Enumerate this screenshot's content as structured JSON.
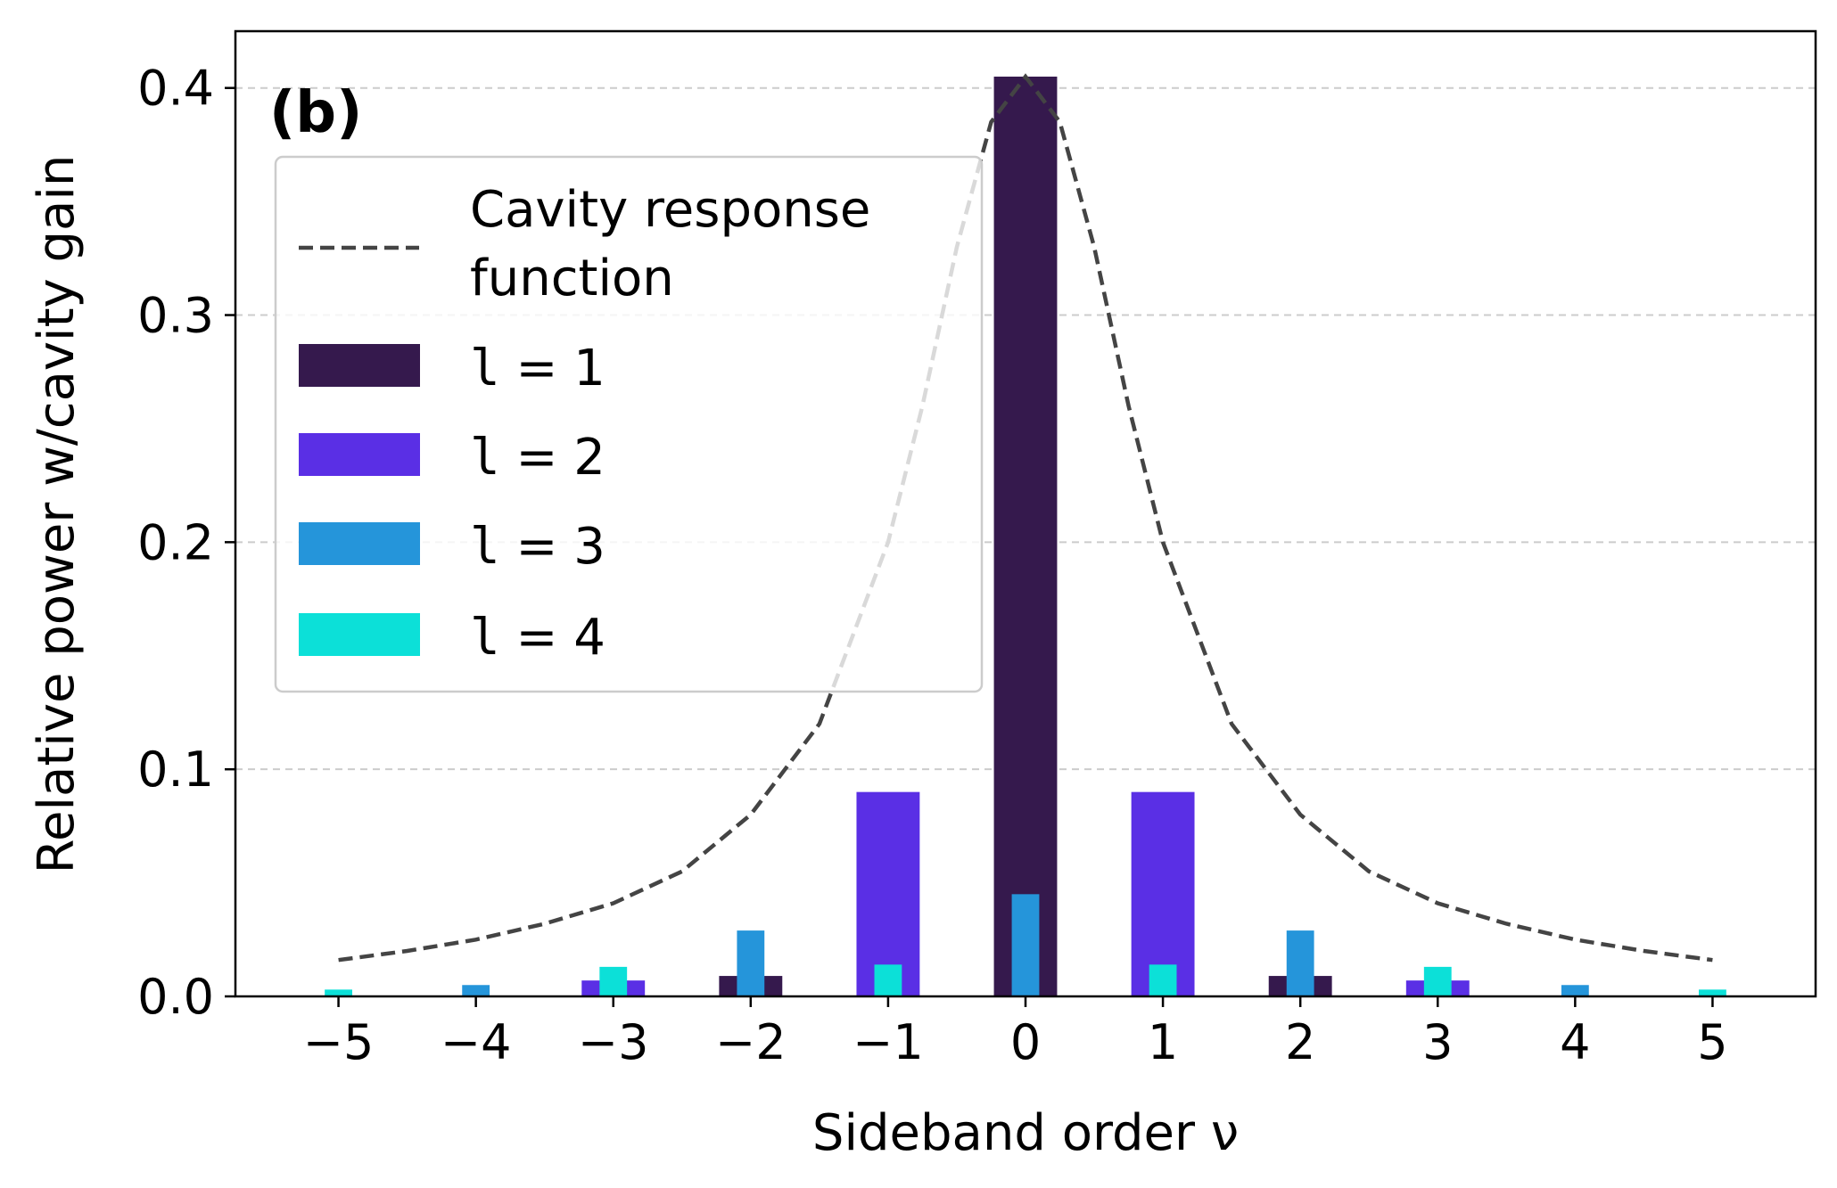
{
  "chart_data": {
    "type": "bar",
    "panel_label": "(b)",
    "xlabel": "Sideband order ν",
    "ylabel": "Relative power w/cavity gain",
    "xlim": [
      -5.75,
      5.75
    ],
    "ylim": [
      0,
      0.425
    ],
    "x_ticks": [
      -5,
      -4,
      -3,
      -2,
      -1,
      0,
      1,
      2,
      3,
      4,
      5
    ],
    "x_tick_labels": [
      "−5",
      "−4",
      "−3",
      "−2",
      "−1",
      "0",
      "1",
      "2",
      "3",
      "4",
      "5"
    ],
    "y_ticks": [
      0.0,
      0.1,
      0.2,
      0.3,
      0.4
    ],
    "y_tick_labels": [
      "0.0",
      "0.1",
      "0.2",
      "0.3",
      "0.4"
    ],
    "grid": "y-dashed",
    "legend_position": "upper-left",
    "curve": {
      "name": "Cavity response function",
      "name_lines": [
        "Cavity response",
        "function"
      ],
      "color": "#444444",
      "x": [
        -5,
        -4.5,
        -4,
        -3.5,
        -3,
        -2.5,
        -2,
        -1.5,
        -1,
        -0.75,
        -0.5,
        -0.25,
        0,
        0.25,
        0.5,
        0.75,
        1,
        1.5,
        2,
        2.5,
        3,
        3.5,
        4,
        4.5,
        5
      ],
      "y": [
        0.016,
        0.02,
        0.025,
        0.032,
        0.041,
        0.055,
        0.08,
        0.12,
        0.2,
        0.26,
        0.33,
        0.385,
        0.405,
        0.385,
        0.33,
        0.26,
        0.2,
        0.12,
        0.08,
        0.055,
        0.041,
        0.032,
        0.025,
        0.02,
        0.016
      ]
    },
    "series": [
      {
        "name": "l = 1",
        "legend_symbol": "l",
        "legend_value": "1",
        "color": "#35194d",
        "x": [
          -2,
          0,
          2
        ],
        "values": [
          0.009,
          0.405,
          0.009
        ]
      },
      {
        "name": "l = 2",
        "legend_symbol": "l",
        "legend_value": "2",
        "color": "#5a2fe5",
        "x": [
          -3,
          -1,
          1,
          3
        ],
        "values": [
          0.007,
          0.09,
          0.09,
          0.007
        ]
      },
      {
        "name": "l = 3",
        "legend_symbol": "l",
        "legend_value": "3",
        "color": "#2595da",
        "x": [
          -4,
          -2,
          0,
          2,
          4
        ],
        "values": [
          0.005,
          0.029,
          0.045,
          0.029,
          0.005
        ]
      },
      {
        "name": "l = 4",
        "legend_symbol": "l",
        "legend_value": "4",
        "color": "#0ce0d8",
        "x": [
          -5,
          -3,
          -1,
          1,
          3,
          5
        ],
        "values": [
          0.003,
          0.013,
          0.014,
          0.014,
          0.013,
          0.003
        ]
      }
    ]
  }
}
